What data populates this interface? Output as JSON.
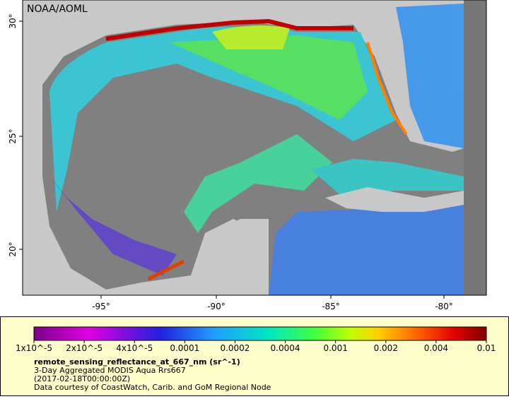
{
  "map": {
    "credit": "NOAA/AOML",
    "x_tick_labels": [
      "-95°",
      "-90°",
      "-85°",
      "-80°"
    ],
    "y_tick_labels": [
      "30°",
      "25°",
      "20°"
    ]
  },
  "legend": {
    "scale_labels": [
      "1x10^-5",
      "2x10^-5",
      "4x10^-5",
      "0.0001",
      "0.0002",
      "0.0004",
      "0.001",
      "0.002",
      "0.004",
      "0.01"
    ],
    "variable": "remote_sensing_reflectance_at_667_nm (sr^-1)",
    "description": "3-Day Aggregated MODIS Aqua Rrs667",
    "time": "(2017-02-18T00:00:00Z)",
    "source": "Data courtesy of CoastWatch, Carib. and GoM Regional Node"
  }
}
